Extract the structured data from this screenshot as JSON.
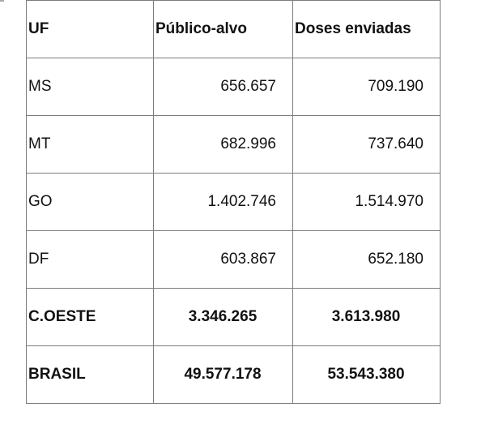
{
  "table": {
    "headers": [
      "UF",
      "Público-alvo",
      "Doses enviadas"
    ],
    "rows": [
      {
        "uf": "MS",
        "publico_alvo": "656.657",
        "doses_enviadas": "709.190"
      },
      {
        "uf": "MT",
        "publico_alvo": "682.996",
        "doses_enviadas": "737.640"
      },
      {
        "uf": "GO",
        "publico_alvo": "1.402.746",
        "doses_enviadas": "1.514.970"
      },
      {
        "uf": "DF",
        "publico_alvo": "603.867",
        "doses_enviadas": "652.180"
      }
    ],
    "totals": [
      {
        "uf": "C.OESTE",
        "publico_alvo": "3.346.265",
        "doses_enviadas": "3.613.980"
      },
      {
        "uf": "BRASIL",
        "publico_alvo": "49.577.178",
        "doses_enviadas": "53.543.380"
      }
    ]
  }
}
